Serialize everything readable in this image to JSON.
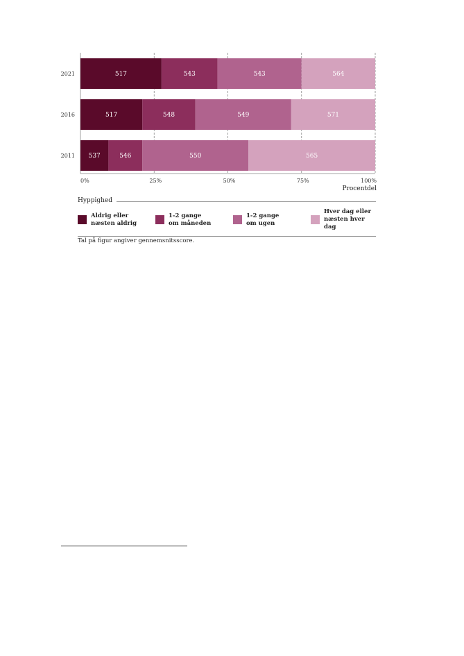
{
  "chart_data": {
    "type": "bar",
    "orientation": "horizontal",
    "stacked": true,
    "categories": [
      "2021",
      "2016",
      "2011"
    ],
    "xlabel": "Procentdel",
    "xlim": [
      0,
      100
    ],
    "xticks": [
      "0%",
      "25%",
      "50%",
      "75%",
      "100%"
    ],
    "grid": "vertical dashed",
    "legend_title": "Hyppighed",
    "legend_placement": "bottom",
    "series": [
      {
        "name": "Aldrig eller\nnæsten aldrig",
        "color": "#5a0a2a",
        "values": [
          27.5,
          21,
          9.5
        ],
        "labels": [
          "517",
          "517",
          "537"
        ]
      },
      {
        "name": "1-2 gange\nom måneden",
        "color": "#8c2e5c",
        "values": [
          19,
          18,
          11.5
        ],
        "labels": [
          "543",
          "548",
          "546"
        ]
      },
      {
        "name": "1-2 gange\nom ugen",
        "color": "#b0638e",
        "values": [
          28.5,
          32.5,
          36
        ],
        "labels": [
          "543",
          "549",
          "550"
        ]
      },
      {
        "name": "Hver dag eller\nnæsten hver dag",
        "color": "#d4a2bd",
        "values": [
          25,
          28.5,
          43
        ],
        "labels": [
          "564",
          "571",
          "565"
        ]
      }
    ]
  },
  "note": "Tal på figur angiver gennemsnitsscore."
}
